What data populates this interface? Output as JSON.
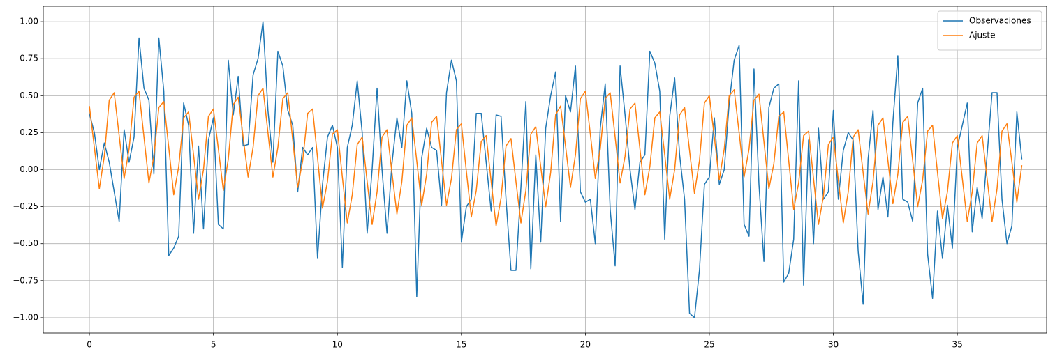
{
  "chart_data": {
    "type": "line",
    "x": [
      0,
      0.2,
      0.4,
      0.6,
      0.8,
      1,
      1.2,
      1.4,
      1.6,
      1.8,
      2,
      2.2,
      2.4,
      2.6,
      2.8,
      3,
      3.2,
      3.4,
      3.6,
      3.8,
      4,
      4.2,
      4.4,
      4.6,
      4.8,
      5,
      5.2,
      5.4,
      5.6,
      5.8,
      6,
      6.2,
      6.4,
      6.6,
      6.8,
      7,
      7.2,
      7.4,
      7.6,
      7.8,
      8,
      8.2,
      8.4,
      8.6,
      8.8,
      9,
      9.2,
      9.4,
      9.6,
      9.8,
      10,
      10.2,
      10.4,
      10.6,
      10.8,
      11,
      11.2,
      11.4,
      11.6,
      11.8,
      12,
      12.2,
      12.4,
      12.6,
      12.8,
      13,
      13.2,
      13.4,
      13.6,
      13.8,
      14,
      14.2,
      14.4,
      14.6,
      14.8,
      15,
      15.2,
      15.4,
      15.6,
      15.8,
      16,
      16.2,
      16.4,
      16.6,
      16.8,
      17,
      17.2,
      17.4,
      17.6,
      17.8,
      18,
      18.2,
      18.4,
      18.6,
      18.8,
      19,
      19.2,
      19.4,
      19.6,
      19.8,
      20,
      20.2,
      20.4,
      20.6,
      20.8,
      21,
      21.2,
      21.4,
      21.6,
      21.8,
      22,
      22.2,
      22.4,
      22.6,
      22.8,
      23,
      23.2,
      23.4,
      23.6,
      23.8,
      24,
      24.2,
      24.4,
      24.6,
      24.8,
      25,
      25.2,
      25.4,
      25.6,
      25.8,
      26,
      26.2,
      26.4,
      26.6,
      26.8,
      27,
      27.2,
      27.4,
      27.6,
      27.8,
      28,
      28.2,
      28.4,
      28.6,
      28.8,
      29,
      29.2,
      29.4,
      29.6,
      29.8,
      30,
      30.2,
      30.4,
      30.6,
      30.8,
      31,
      31.2,
      31.4,
      31.6,
      31.8,
      32,
      32.2,
      32.4,
      32.6,
      32.8,
      33,
      33.2,
      33.4,
      33.6,
      33.8,
      34,
      34.2,
      34.4,
      34.6,
      34.8,
      35,
      35.2,
      35.4,
      35.6,
      35.8,
      36,
      36.2,
      36.4,
      36.6,
      36.8,
      37,
      37.2,
      37.4,
      37.6
    ],
    "series": [
      {
        "name": "Observaciones",
        "color": "#1f77b4",
        "values": [
          0.38,
          0.25,
          0,
          0.18,
          0.05,
          -0.15,
          -0.35,
          0.27,
          0.05,
          0.22,
          0.89,
          0.55,
          0.47,
          -0.03,
          0.89,
          0.53,
          -0.58,
          -0.53,
          -0.45,
          0.45,
          0.3,
          -0.43,
          0.16,
          -0.4,
          0.2,
          0.35,
          -0.37,
          -0.4,
          0.74,
          0.37,
          0.63,
          0.16,
          0.17,
          0.64,
          0.75,
          1.0,
          0.4,
          0.05,
          0.8,
          0.7,
          0.4,
          0.3,
          -0.15,
          0.15,
          0.1,
          0.15,
          -0.6,
          -0.1,
          0.22,
          0.3,
          0.15,
          -0.66,
          0.15,
          0.3,
          0.6,
          0.25,
          -0.43,
          0,
          0.55,
          0,
          -0.43,
          0.04,
          0.35,
          0.15,
          0.6,
          0.38,
          -0.86,
          0.08,
          0.28,
          0.15,
          0.13,
          -0.24,
          0.52,
          0.74,
          0.6,
          -0.49,
          -0.25,
          -0.2,
          0.38,
          0.38,
          0.05,
          -0.28,
          0.37,
          0.36,
          -0.2,
          -0.68,
          -0.68,
          -0.12,
          0.46,
          -0.67,
          0.1,
          -0.49,
          0.28,
          0.5,
          0.66,
          -0.35,
          0.5,
          0.39,
          0.7,
          -0.15,
          -0.22,
          -0.2,
          -0.5,
          0.28,
          0.58,
          -0.27,
          -0.65,
          0.7,
          0.37,
          0,
          -0.27,
          0.05,
          0.1,
          0.8,
          0.72,
          0.53,
          -0.47,
          0.36,
          0.62,
          0.1,
          -0.2,
          -0.97,
          -1.0,
          -0.68,
          -0.1,
          -0.05,
          0.35,
          -0.1,
          0,
          0.45,
          0.74,
          0.84,
          -0.37,
          -0.45,
          0.68,
          -0.1,
          -0.62,
          0.42,
          0.55,
          0.58,
          -0.76,
          -0.7,
          -0.47,
          0.6,
          -0.78,
          0.2,
          -0.5,
          0.28,
          -0.2,
          -0.15,
          0.4,
          -0.2,
          0.13,
          0.25,
          0.2,
          -0.55,
          -0.91,
          0.07,
          0.4,
          -0.27,
          -0.05,
          -0.32,
          0.32,
          0.77,
          -0.2,
          -0.22,
          -0.35,
          0.45,
          0.55,
          -0.57,
          -0.87,
          -0.28,
          -0.6,
          -0.24,
          -0.53,
          0.15,
          0.3,
          0.45,
          -0.42,
          -0.12,
          -0.33,
          0.1,
          0.52,
          0.52,
          -0.2,
          -0.5,
          -0.38,
          0.39,
          0.07
        ]
      },
      {
        "name": "Ajuste",
        "color": "#ff7f0e",
        "values": [
          0.43,
          0.15,
          -0.13,
          0.09,
          0.47,
          0.52,
          0.23,
          -0.06,
          0.14,
          0.49,
          0.53,
          0.22,
          -0.09,
          0.09,
          0.42,
          0.46,
          0.15,
          -0.17,
          0.02,
          0.35,
          0.39,
          0.1,
          -0.2,
          0,
          0.36,
          0.41,
          0.14,
          -0.14,
          0.07,
          0.44,
          0.49,
          0.22,
          -0.05,
          0.15,
          0.5,
          0.55,
          0.25,
          -0.05,
          0.15,
          0.48,
          0.52,
          0.2,
          -0.12,
          0.06,
          0.38,
          0.41,
          0.08,
          -0.26,
          -0.08,
          0.24,
          0.27,
          -0.05,
          -0.36,
          -0.17,
          0.17,
          0.22,
          -0.08,
          -0.37,
          -0.15,
          0.22,
          0.27,
          -0.02,
          -0.3,
          -0.08,
          0.3,
          0.35,
          0.06,
          -0.24,
          -0.03,
          0.32,
          0.36,
          0.06,
          -0.24,
          -0.06,
          0.27,
          0.31,
          -0.01,
          -0.32,
          -0.14,
          0.19,
          0.23,
          -0.08,
          -0.38,
          -0.19,
          0.16,
          0.21,
          -0.08,
          -0.36,
          -0.14,
          0.24,
          0.29,
          0.02,
          -0.25,
          -0.02,
          0.37,
          0.43,
          0.16,
          -0.12,
          0.1,
          0.48,
          0.53,
          0.24,
          -0.06,
          0.14,
          0.48,
          0.52,
          0.22,
          -0.09,
          0.09,
          0.41,
          0.45,
          0.14,
          -0.17,
          0.02,
          0.35,
          0.39,
          0.1,
          -0.2,
          0,
          0.37,
          0.42,
          0.13,
          -0.16,
          0.06,
          0.45,
          0.5,
          0.22,
          -0.07,
          0.14,
          0.5,
          0.54,
          0.25,
          -0.05,
          0.14,
          0.47,
          0.51,
          0.19,
          -0.13,
          0.04,
          0.36,
          0.39,
          0.06,
          -0.27,
          -0.09,
          0.23,
          0.26,
          -0.06,
          -0.37,
          -0.18,
          0.17,
          0.22,
          -0.07,
          -0.36,
          -0.15,
          0.22,
          0.27,
          -0.02,
          -0.3,
          -0.08,
          0.3,
          0.35,
          0.06,
          -0.23,
          -0.03,
          0.32,
          0.36,
          0.06,
          -0.25,
          -0.07,
          0.26,
          0.3,
          -0.02,
          -0.33,
          -0.15,
          0.18,
          0.23,
          -0.06,
          -0.35,
          -0.15,
          0.18,
          0.23,
          -0.06,
          -0.35,
          -0.13,
          0.26,
          0.31,
          0.05,
          -0.22,
          0.03
        ]
      }
    ],
    "xlim": [
      -1.86,
      38.6
    ],
    "xticks": [
      0,
      5,
      10,
      15,
      20,
      25,
      30,
      35
    ],
    "ylim": [
      -1.104,
      1.104
    ],
    "yticks": [
      {
        "value": -1,
        "label": "−1.00"
      },
      {
        "value": -0.75,
        "label": "−0.75"
      },
      {
        "value": -0.5,
        "label": "−0.50"
      },
      {
        "value": -0.25,
        "label": "−0.25"
      },
      {
        "value": 0,
        "label": "0.00"
      },
      {
        "value": 0.25,
        "label": "0.25"
      },
      {
        "value": 0.5,
        "label": "0.50"
      },
      {
        "value": 0.75,
        "label": "0.75"
      },
      {
        "value": 1,
        "label": "1.00"
      }
    ],
    "grid": true,
    "legend": "upper right"
  }
}
